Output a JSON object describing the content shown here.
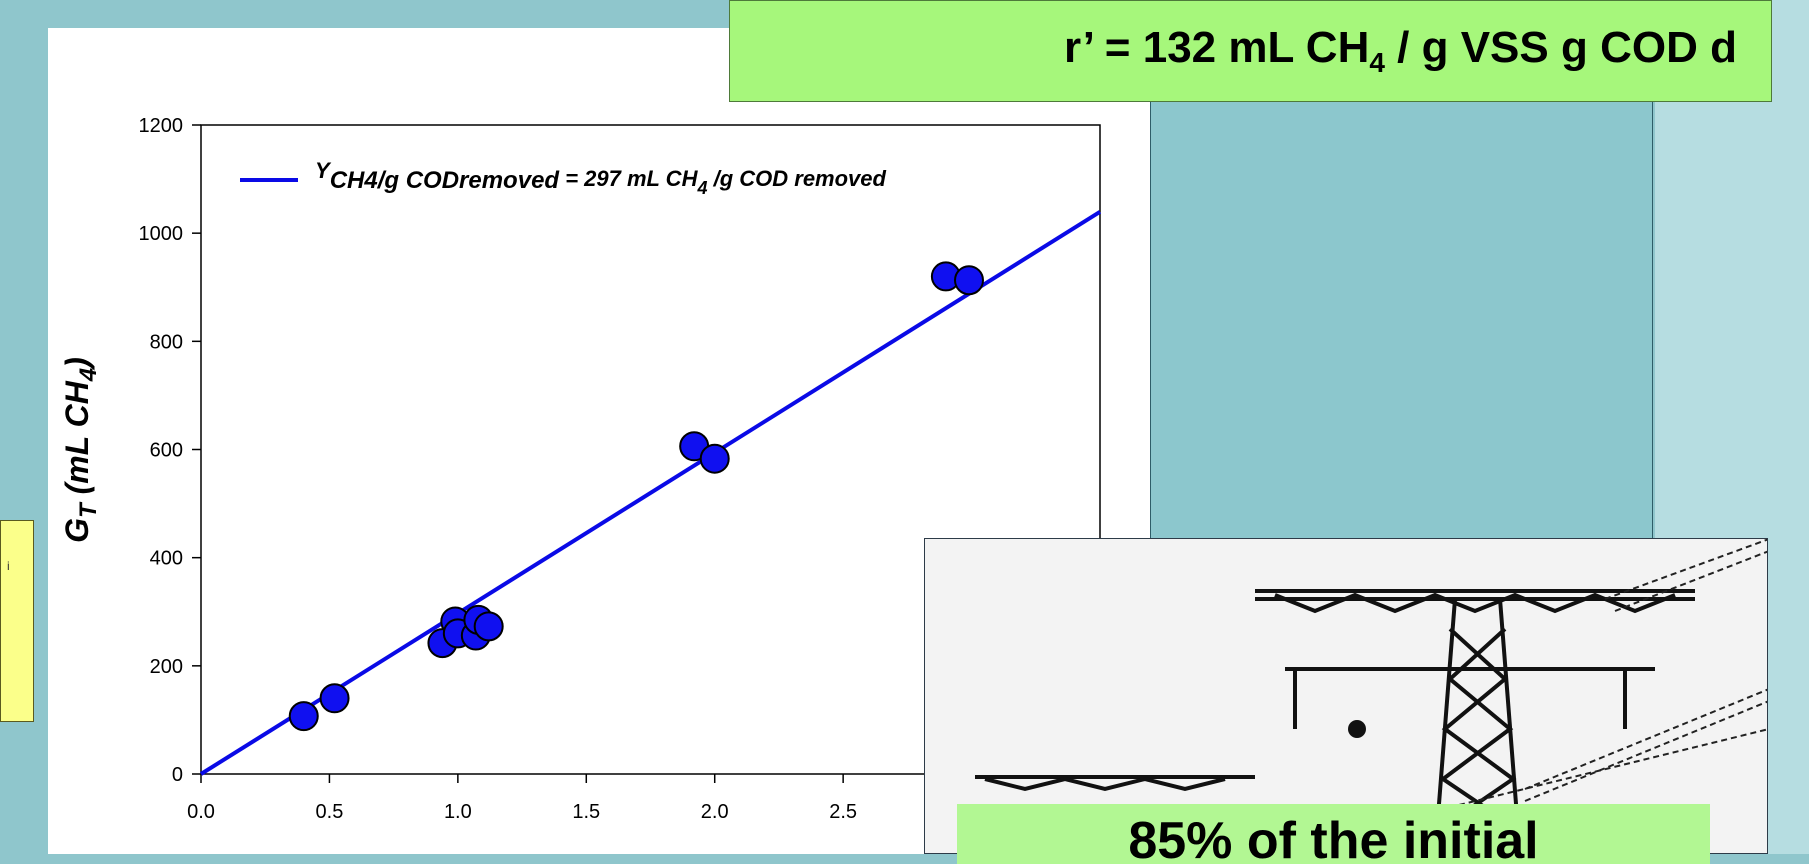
{
  "formula": {
    "prefix": "r’ = 132 mL CH",
    "sub": "4",
    "suffix": " / g VSS g COD d"
  },
  "caption": "85% of the initial",
  "yellow_box_text": "i",
  "colors": {
    "line": "#0a0ae6",
    "points": "#1010f0",
    "formula_bg": "#a6f77b",
    "caption_bg": "#b2f793",
    "note_bg": "#fbff8a"
  },
  "photo": {
    "icon": "electricity-pylon-image"
  },
  "chart_data": {
    "type": "scatter",
    "xlabel": "",
    "ylabel": {
      "main": "G",
      "sub": "T",
      "rest": " (mL CH",
      "sub2": "4",
      "close": ")"
    },
    "xlim": [
      0,
      3.5
    ],
    "ylim": [
      0,
      1200
    ],
    "xticks": [
      "0.0",
      "0.5",
      "1.0",
      "1.5",
      "2.0",
      "2.5"
    ],
    "yticks": [
      "0",
      "200",
      "400",
      "600",
      "800",
      "1000",
      "1200"
    ],
    "grid": false,
    "legend": {
      "placement": "top-left",
      "label": {
        "y": "Y",
        "sub": "CH4/g CODremoved",
        "eq": " = 297 mL CH",
        "sub2": "4",
        "rest": " /g COD removed"
      }
    },
    "fit_line": {
      "slope": 297,
      "intercept": 0
    },
    "points": [
      {
        "x": 0.4,
        "y": 107
      },
      {
        "x": 0.52,
        "y": 140
      },
      {
        "x": 0.94,
        "y": 242
      },
      {
        "x": 0.99,
        "y": 282
      },
      {
        "x": 1.0,
        "y": 260
      },
      {
        "x": 1.07,
        "y": 256
      },
      {
        "x": 1.08,
        "y": 285
      },
      {
        "x": 1.12,
        "y": 273
      },
      {
        "x": 1.92,
        "y": 606
      },
      {
        "x": 2.0,
        "y": 583
      },
      {
        "x": 2.9,
        "y": 920
      },
      {
        "x": 2.99,
        "y": 913
      }
    ]
  }
}
